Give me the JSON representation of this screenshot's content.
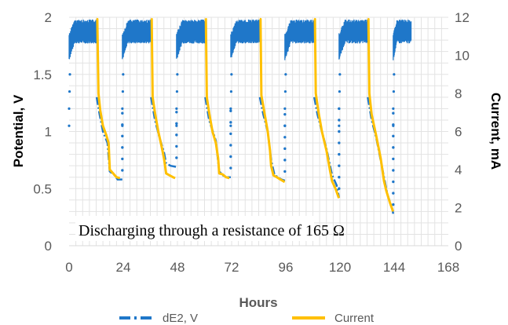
{
  "chart_data": {
    "type": "line",
    "title": "",
    "xlabel": "Hours",
    "ylabel": "Potential, V",
    "y2label": "Current, mA",
    "xlim": [
      0,
      168
    ],
    "ylim": [
      0,
      2
    ],
    "y2lim": [
      0,
      12
    ],
    "x_ticks": [
      "0",
      "24",
      "48",
      "72",
      "96",
      "120",
      "144",
      "168"
    ],
    "y_ticks": [
      "0",
      "0.5",
      "1",
      "1.5",
      "2"
    ],
    "y2_ticks": [
      "0",
      "2",
      "4",
      "6",
      "8",
      "10",
      "12"
    ],
    "grid": true,
    "legend_position": "bottom",
    "annotation": "Discharging through a resistance of 165 Ω",
    "series": [
      {
        "name": "dE2, V",
        "axis": "left",
        "color": "#1f77c9",
        "style": "dash-dot",
        "charge_periods": [
          [
            0,
            12.2
          ],
          [
            23.6,
            36.3
          ],
          [
            47.6,
            60.3
          ],
          [
            71.6,
            84.5
          ],
          [
            95.6,
            108.6
          ],
          [
            119.6,
            132.3
          ],
          [
            143.6,
            151.5
          ]
        ],
        "charge_plateau_v": [
          1.72,
          1.98
        ],
        "discharge_curves": [
          [
            [
              12.2,
              1.3
            ],
            [
              13.5,
              1.15
            ],
            [
              15,
              1.0
            ],
            [
              17,
              0.9
            ],
            [
              18,
              0.65
            ],
            [
              20,
              0.62
            ],
            [
              21.5,
              0.58
            ],
            [
              23.6,
              0.58
            ]
          ],
          [
            [
              36.3,
              1.3
            ],
            [
              38,
              1.1
            ],
            [
              40,
              0.95
            ],
            [
              42,
              0.82
            ],
            [
              43,
              0.72
            ],
            [
              45,
              0.7
            ],
            [
              47.6,
              0.69
            ]
          ],
          [
            [
              60.3,
              1.3
            ],
            [
              62,
              1.1
            ],
            [
              65,
              0.92
            ],
            [
              66.5,
              0.65
            ],
            [
              69,
              0.6
            ],
            [
              71.6,
              0.6
            ]
          ],
          [
            [
              84.5,
              1.3
            ],
            [
              86,
              1.15
            ],
            [
              88,
              1.0
            ],
            [
              89.5,
              0.75
            ],
            [
              91,
              0.62
            ],
            [
              94,
              0.58
            ],
            [
              95.6,
              0.57
            ]
          ],
          [
            [
              108.6,
              1.3
            ],
            [
              110,
              1.15
            ],
            [
              112,
              1.0
            ],
            [
              114,
              0.85
            ],
            [
              116.5,
              0.62
            ],
            [
              118.5,
              0.53
            ],
            [
              119.6,
              0.42
            ]
          ],
          [
            [
              132.3,
              1.3
            ],
            [
              134,
              1.1
            ],
            [
              136,
              0.95
            ],
            [
              138,
              0.75
            ],
            [
              140,
              0.55
            ],
            [
              141,
              0.45
            ],
            [
              143.2,
              0.32
            ],
            [
              143.6,
              0.28
            ]
          ]
        ]
      },
      {
        "name": "Current",
        "axis": "right",
        "color": "#ffc000",
        "style": "solid",
        "unit": "mA",
        "discharge_curves": [
          [
            [
              12.2,
              11.9
            ],
            [
              12.5,
              11.9
            ],
            [
              13,
              8.0
            ],
            [
              13.8,
              7.1
            ],
            [
              15,
              6.3
            ],
            [
              16.5,
              5.8
            ],
            [
              17.5,
              5.4
            ],
            [
              18,
              4.0
            ],
            [
              19.5,
              3.8
            ],
            [
              21,
              3.6
            ],
            [
              22.5,
              3.55
            ]
          ],
          [
            [
              36.3,
              11.9
            ],
            [
              36.6,
              11.9
            ],
            [
              37,
              7.8
            ],
            [
              38,
              7.0
            ],
            [
              39.5,
              6.0
            ],
            [
              41,
              5.2
            ],
            [
              42,
              4.6
            ],
            [
              43,
              3.8
            ],
            [
              44.5,
              3.7
            ],
            [
              46,
              3.6
            ],
            [
              47,
              3.55
            ]
          ],
          [
            [
              60.3,
              11.9
            ],
            [
              60.6,
              11.9
            ],
            [
              61,
              7.8
            ],
            [
              62,
              7.0
            ],
            [
              63.5,
              6.0
            ],
            [
              65,
              5.4
            ],
            [
              66,
              4.6
            ],
            [
              66.5,
              3.8
            ],
            [
              68,
              3.75
            ],
            [
              69.5,
              3.6
            ],
            [
              71,
              3.55
            ]
          ],
          [
            [
              84.5,
              11.9
            ],
            [
              84.8,
              11.9
            ],
            [
              85.2,
              7.9
            ],
            [
              86.5,
              7.0
            ],
            [
              88,
              6.0
            ],
            [
              89,
              5.0
            ],
            [
              89.5,
              4.2
            ],
            [
              90.5,
              3.7
            ],
            [
              92,
              3.6
            ],
            [
              94,
              3.45
            ],
            [
              95.5,
              3.35
            ]
          ],
          [
            [
              108.6,
              11.9
            ],
            [
              108.9,
              11.9
            ],
            [
              109.3,
              8.0
            ],
            [
              110.5,
              7.0
            ],
            [
              112,
              6.0
            ],
            [
              114,
              5.0
            ],
            [
              115.5,
              4.0
            ],
            [
              116.5,
              3.4
            ],
            [
              118,
              3.0
            ],
            [
              119.5,
              2.5
            ]
          ],
          [
            [
              132.3,
              11.9
            ],
            [
              132.6,
              11.9
            ],
            [
              133,
              8.0
            ],
            [
              134,
              6.9
            ],
            [
              136,
              5.8
            ],
            [
              138,
              4.6
            ],
            [
              139.5,
              3.4
            ],
            [
              140.5,
              2.9
            ],
            [
              142,
              2.3
            ],
            [
              143.5,
              1.8
            ]
          ]
        ]
      }
    ]
  }
}
